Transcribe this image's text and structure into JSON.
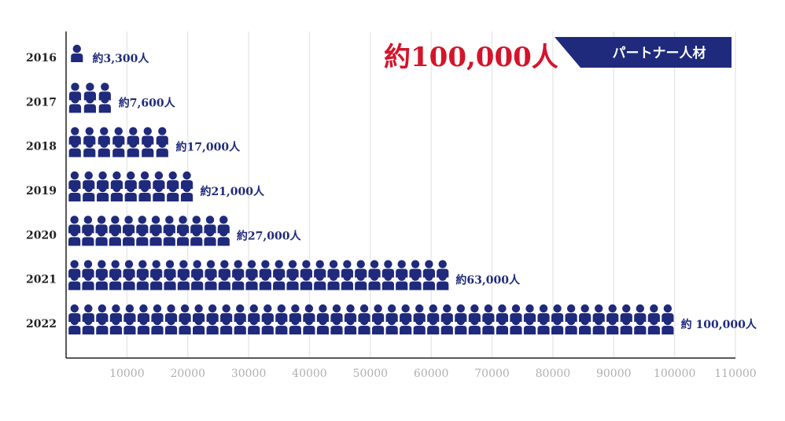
{
  "chart_data": {
    "type": "bar",
    "orientation": "horizontal",
    "style": "pictogram",
    "categories": [
      "2016",
      "2017",
      "2018",
      "2019",
      "2020",
      "2021",
      "2022"
    ],
    "values": [
      3300,
      7600,
      17000,
      21000,
      27000,
      63000,
      100000
    ],
    "data_labels": [
      "約3,300人",
      "約7,600人",
      "約17,000人",
      "約21,000人",
      "約27,000人",
      "約63,000人",
      "約 100,000人"
    ],
    "x_ticks": [
      10000,
      20000,
      30000,
      40000,
      50000,
      60000,
      70000,
      80000,
      90000,
      100000,
      110000
    ],
    "xlim": [
      0,
      110000
    ],
    "grid": true,
    "headline": "約100,000人",
    "banner": "パートナー人材",
    "colors": {
      "bar": "#1f2a7c",
      "headline": "#d4142a",
      "banner": "#1f2a7c",
      "grid": "#e8e8e8",
      "tick": "#b0b0b0"
    }
  }
}
